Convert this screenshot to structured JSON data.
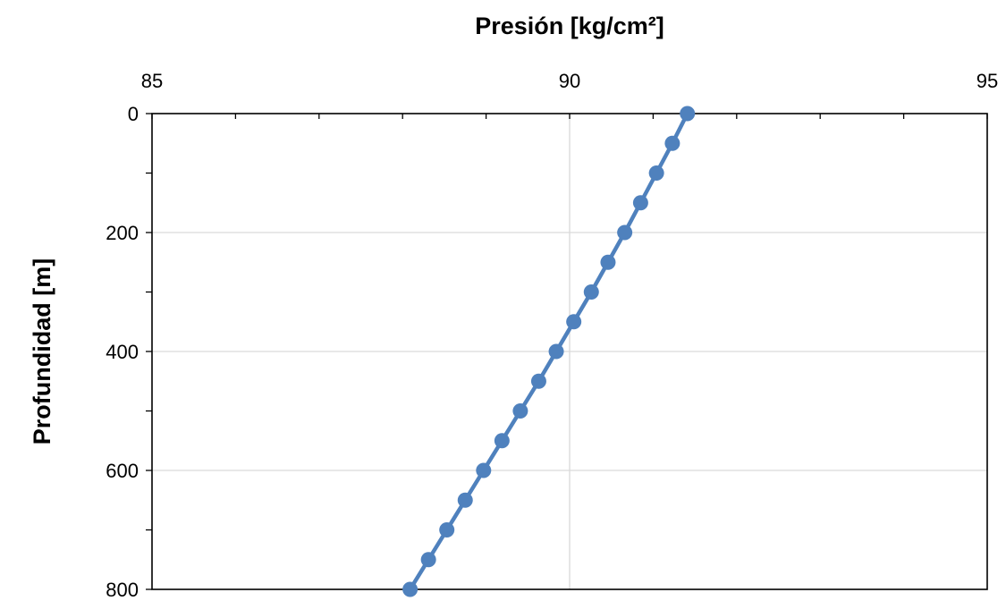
{
  "chart_data": {
    "type": "line",
    "title": "",
    "xlabel": "Presión [kg/cm²]",
    "ylabel": "Profundidad [m]",
    "xlim": [
      85,
      95
    ],
    "ylim": [
      0,
      800
    ],
    "y_inverted": true,
    "x_axis_position": "top",
    "x_major_ticks": [
      85,
      90,
      95
    ],
    "x_minor_ticks": [
      86,
      87,
      88,
      89,
      91,
      92,
      93,
      94
    ],
    "y_major_ticks": [
      0,
      200,
      400,
      600,
      800
    ],
    "y_minor_ticks": [
      100,
      300,
      500,
      700
    ],
    "x_tick_labels": [
      "85",
      "90",
      "95"
    ],
    "y_tick_labels": [
      "0",
      "200",
      "400",
      "600",
      "800"
    ],
    "grid": true,
    "legend": "none",
    "series": [
      {
        "color": "#4f81bd",
        "marker": "circle",
        "x": [
          91.41,
          91.23,
          91.04,
          90.85,
          90.66,
          90.46,
          90.26,
          90.05,
          89.84,
          89.63,
          89.41,
          89.19,
          88.97,
          88.75,
          88.53,
          88.31,
          88.09
        ],
        "y": [
          0,
          50,
          100,
          150,
          200,
          250,
          300,
          350,
          400,
          450,
          500,
          550,
          600,
          650,
          700,
          750,
          800
        ]
      }
    ]
  }
}
